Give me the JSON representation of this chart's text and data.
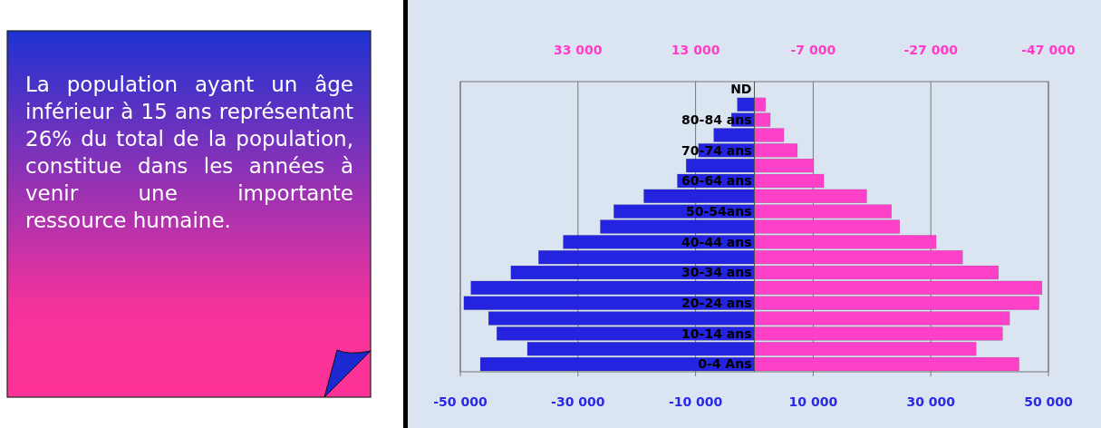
{
  "chart_data": {
    "type": "bar",
    "orientation": "horizontal",
    "categories": [
      "ND",
      null,
      "80-84 ans",
      null,
      "70-74 ans",
      null,
      "60-64 ans",
      null,
      "50-54ans",
      null,
      "40-44 ans",
      null,
      "30-34 ans",
      null,
      "20-24 ans",
      null,
      "10-14 ans",
      null,
      "0-4 Ans"
    ],
    "series": [
      {
        "color": "#2424e0",
        "values": [
          0,
          -2900,
          -3900,
          -6900,
          -9500,
          -11600,
          -13100,
          -18800,
          -23900,
          -26200,
          -32500,
          -36700,
          -41400,
          -48200,
          -49400,
          -45200,
          -43800,
          -38600,
          -46600
        ]
      },
      {
        "color": "#ff40c8",
        "values": [
          0,
          1900,
          2700,
          5000,
          7300,
          10100,
          11800,
          19100,
          23300,
          24700,
          30900,
          35400,
          41500,
          48900,
          48400,
          43400,
          42200,
          37700,
          45000
        ]
      }
    ],
    "xlim": [
      -50000,
      50000
    ],
    "xticks": [
      {
        "value": -50000,
        "label": "-50 000"
      },
      {
        "value": -30000,
        "label": "-30 000"
      },
      {
        "value": -10000,
        "label": "-10 000"
      },
      {
        "value": 10000,
        "label": "10 000"
      },
      {
        "value": 30000,
        "label": "30 000"
      },
      {
        "value": 50000,
        "label": "50 000"
      }
    ],
    "x2lim": [
      53000,
      -47000
    ],
    "x2ticks": [
      {
        "value": 33000,
        "label": "33 000"
      },
      {
        "value": 13000,
        "label": "13 000"
      },
      {
        "value": -7000,
        "label": "-7 000"
      },
      {
        "value": -27000,
        "label": "-27 000"
      },
      {
        "value": -47000,
        "label": "-47 000"
      }
    ],
    "grid": "x",
    "stacked": true,
    "annotations": [
      "La population ayant un âge inférieur à 15 ans représentant 26% du total de la population, constitue dans les années à venir une importante ressource humaine."
    ]
  }
}
